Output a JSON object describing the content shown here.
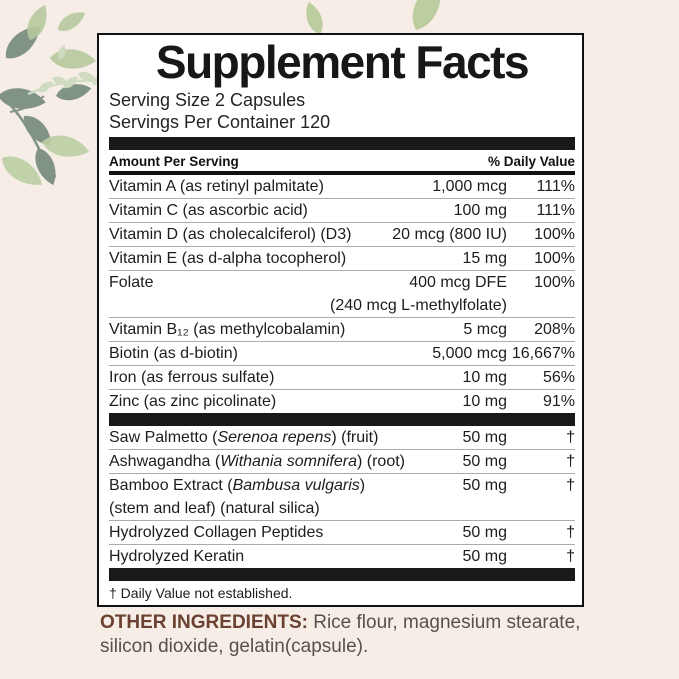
{
  "colors": {
    "background": "#f6ede7",
    "panel_bg": "#ffffff",
    "panel_border": "#101010",
    "bar": "#1b1918",
    "row_divider": "#ababab",
    "other_label": "#6b4131",
    "leaf_light": "#b7c99e",
    "leaf_dark": "#7b8f80",
    "leaf_pale": "#cddcc1"
  },
  "decoration": {
    "icon": "leaf-decoration"
  },
  "panel": {
    "title": "Supplement Facts",
    "serving_size": "Serving Size 2 Capsules",
    "servings_per_container": "Servings Per Container 120",
    "amount_header": "Amount Per Serving",
    "dv_header": "% Daily Value",
    "footnote": "† Daily Value not established.",
    "sections": [
      {
        "rows": [
          {
            "lines": [
              {
                "name_parts": [
                  {
                    "t": "Vitamin A (as retinyl palmitate)",
                    "i": false
                  }
                ],
                "amount": "1,000 mcg",
                "dv": "111%"
              }
            ]
          },
          {
            "lines": [
              {
                "name_parts": [
                  {
                    "t": "Vitamin C (as ascorbic acid)",
                    "i": false
                  }
                ],
                "amount": "100 mg",
                "dv": "111%"
              }
            ]
          },
          {
            "lines": [
              {
                "name_parts": [
                  {
                    "t": "Vitamin D (as cholecalciferol) (D3)",
                    "i": false
                  }
                ],
                "amount": "20 mcg (800 IU)",
                "dv": "100%"
              }
            ]
          },
          {
            "lines": [
              {
                "name_parts": [
                  {
                    "t": "Vitamin E (as d-alpha tocopherol)",
                    "i": false
                  }
                ],
                "amount": "15 mg",
                "dv": "100%"
              }
            ]
          },
          {
            "lines": [
              {
                "name_parts": [
                  {
                    "t": "Folate",
                    "i": false
                  }
                ],
                "amount": "400 mcg DFE",
                "dv": "100%"
              },
              {
                "name_parts": [],
                "amount": "(240 mcg L-methylfolate)",
                "dv": ""
              }
            ]
          },
          {
            "lines": [
              {
                "name_parts": [
                  {
                    "t": "Vitamin B₁₂ (as methylcobalamin)",
                    "i": false
                  }
                ],
                "amount": "5 mcg",
                "dv": "208%"
              }
            ]
          },
          {
            "lines": [
              {
                "name_parts": [
                  {
                    "t": "Biotin (as d-biotin)",
                    "i": false
                  }
                ],
                "amount": "5,000 mcg",
                "dv": "16,667%"
              }
            ]
          },
          {
            "lines": [
              {
                "name_parts": [
                  {
                    "t": "Iron (as ferrous sulfate)",
                    "i": false
                  }
                ],
                "amount": "10 mg",
                "dv": "56%"
              }
            ]
          },
          {
            "lines": [
              {
                "name_parts": [
                  {
                    "t": "Zinc (as zinc picolinate)",
                    "i": false
                  }
                ],
                "amount": "10 mg",
                "dv": "91%"
              }
            ]
          }
        ]
      },
      {
        "rows": [
          {
            "lines": [
              {
                "name_parts": [
                  {
                    "t": "Saw Palmetto (",
                    "i": false
                  },
                  {
                    "t": "Serenoa repens",
                    "i": true
                  },
                  {
                    "t": ") (fruit)",
                    "i": false
                  }
                ],
                "amount": "50 mg",
                "dv": "†"
              }
            ]
          },
          {
            "lines": [
              {
                "name_parts": [
                  {
                    "t": "Ashwagandha (",
                    "i": false
                  },
                  {
                    "t": "Withania somnifera",
                    "i": true
                  },
                  {
                    "t": ") (root)",
                    "i": false
                  }
                ],
                "amount": "50 mg",
                "dv": "†"
              }
            ]
          },
          {
            "lines": [
              {
                "name_parts": [
                  {
                    "t": "Bamboo Extract (",
                    "i": false
                  },
                  {
                    "t": "Bambusa vulgaris",
                    "i": true
                  },
                  {
                    "t": ")",
                    "i": false
                  }
                ],
                "amount": "50 mg",
                "dv": "†"
              },
              {
                "name_parts": [
                  {
                    "t": "(stem and leaf) (natural silica)",
                    "i": false
                  }
                ],
                "amount": "",
                "dv": ""
              }
            ]
          },
          {
            "lines": [
              {
                "name_parts": [
                  {
                    "t": "Hydrolyzed Collagen Peptides",
                    "i": false
                  }
                ],
                "amount": "50 mg",
                "dv": "†"
              }
            ]
          },
          {
            "lines": [
              {
                "name_parts": [
                  {
                    "t": "Hydrolyzed Keratin",
                    "i": false
                  }
                ],
                "amount": "50 mg",
                "dv": "†"
              }
            ]
          }
        ]
      }
    ]
  },
  "other_ingredients": {
    "label": "OTHER INGREDIENTS:",
    "text": " Rice flour, magnesium stearate, silicon dioxide, gelatin(capsule)."
  }
}
